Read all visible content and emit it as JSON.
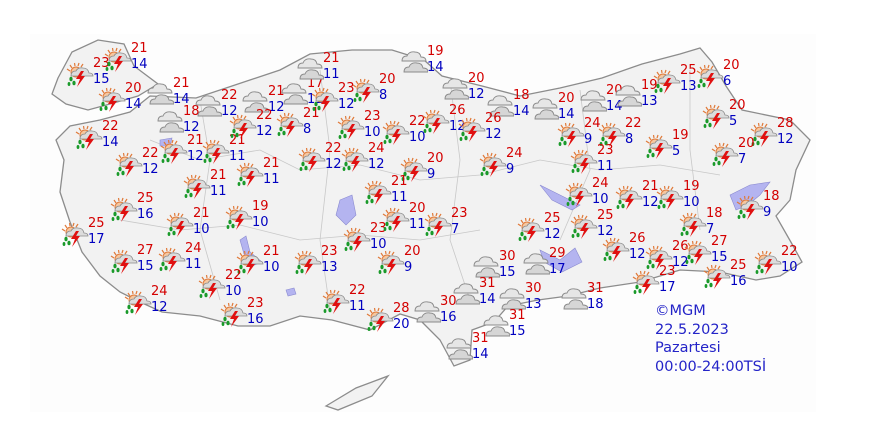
{
  "legend": {
    "copyright": "©MGM",
    "date": "22.5.2023",
    "day": "Pazartesi",
    "period": "00:00-24:00TSİ"
  },
  "colors": {
    "high": "#d40000",
    "low": "#0000c0",
    "land": "#f2f2f2",
    "water": "#b4b4f0",
    "border": "#999999",
    "legend": "#2424c8"
  },
  "icons": {
    "storm": "sun-cloud-thunderstorm-rain-icon",
    "cloudy": "cloudy-icon"
  },
  "stations": [
    {
      "icon": "storm",
      "high": 23,
      "low": 15
    },
    {
      "icon": "storm",
      "high": 21,
      "low": 14
    },
    {
      "icon": "storm",
      "high": 20,
      "low": 14
    },
    {
      "icon": "cloudy",
      "high": 21,
      "low": 14
    },
    {
      "icon": "cloudy",
      "high": 18,
      "low": 12
    },
    {
      "icon": "storm",
      "high": 22,
      "low": 14
    },
    {
      "icon": "storm",
      "high": 22,
      "low": 12
    },
    {
      "icon": "storm",
      "high": 21,
      "low": 12
    },
    {
      "icon": "storm",
      "high": 21,
      "low": 11
    },
    {
      "icon": "storm",
      "high": 21,
      "low": 11
    },
    {
      "icon": "storm",
      "high": 21,
      "low": 11
    },
    {
      "icon": "cloudy",
      "high": 22,
      "low": 12
    },
    {
      "icon": "cloudy",
      "high": 21,
      "low": 12
    },
    {
      "icon": "storm",
      "high": 22,
      "low": 12
    },
    {
      "icon": "storm",
      "high": 21,
      "low": 8
    },
    {
      "icon": "cloudy",
      "high": 17,
      "low": 11
    },
    {
      "icon": "cloudy",
      "high": 21,
      "low": 11
    },
    {
      "icon": "storm",
      "high": 23,
      "low": 12
    },
    {
      "icon": "storm",
      "high": 20,
      "low": 8
    },
    {
      "icon": "storm",
      "high": 23,
      "low": 10
    },
    {
      "icon": "storm",
      "high": 22,
      "low": 12
    },
    {
      "icon": "storm",
      "high": 24,
      "low": 12
    },
    {
      "icon": "storm",
      "high": 22,
      "low": 10
    },
    {
      "icon": "storm",
      "high": 20,
      "low": 9
    },
    {
      "icon": "storm",
      "high": 21,
      "low": 11
    },
    {
      "icon": "cloudy",
      "high": 19,
      "low": 14
    },
    {
      "icon": "cloudy",
      "high": 20,
      "low": 12
    },
    {
      "icon": "cloudy",
      "high": 18,
      "low": 14
    },
    {
      "icon": "cloudy",
      "high": 20,
      "low": 14
    },
    {
      "icon": "storm",
      "high": 26,
      "low": 12
    },
    {
      "icon": "storm",
      "high": 26,
      "low": 12
    },
    {
      "icon": "storm",
      "high": 24,
      "low": 9
    },
    {
      "icon": "storm",
      "high": 24,
      "low": 9
    },
    {
      "icon": "storm",
      "high": 22,
      "low": 8
    },
    {
      "icon": "storm",
      "high": 23,
      "low": 11
    },
    {
      "icon": "cloudy",
      "high": 20,
      "low": 14
    },
    {
      "icon": "cloudy",
      "high": 19,
      "low": 13
    },
    {
      "icon": "storm",
      "high": 25,
      "low": 13
    },
    {
      "icon": "storm",
      "high": 20,
      "low": 6
    },
    {
      "icon": "storm",
      "high": 20,
      "low": 5
    },
    {
      "icon": "storm",
      "high": 28,
      "low": 12
    },
    {
      "icon": "storm",
      "high": 19,
      "low": 5
    },
    {
      "icon": "storm",
      "high": 20,
      "low": 7
    },
    {
      "icon": "storm",
      "high": 24,
      "low": 10
    },
    {
      "icon": "storm",
      "high": 21,
      "low": 12
    },
    {
      "icon": "storm",
      "high": 19,
      "low": 10
    },
    {
      "icon": "storm",
      "high": 18,
      "low": 9
    },
    {
      "icon": "storm",
      "high": 18,
      "low": 7
    },
    {
      "icon": "storm",
      "high": 25,
      "low": 12
    },
    {
      "icon": "storm",
      "high": 25,
      "low": 12
    },
    {
      "icon": "storm",
      "high": 26,
      "low": 12
    },
    {
      "icon": "storm",
      "high": 26,
      "low": 12
    },
    {
      "icon": "storm",
      "high": 27,
      "low": 15
    },
    {
      "icon": "storm",
      "high": 22,
      "low": 10
    },
    {
      "icon": "storm",
      "high": 25,
      "low": 16
    },
    {
      "icon": "storm",
      "high": 23,
      "low": 17
    },
    {
      "icon": "cloudy",
      "high": 31,
      "low": 18
    },
    {
      "icon": "cloudy",
      "high": 29,
      "low": 17
    },
    {
      "icon": "cloudy",
      "high": 30,
      "low": 15
    },
    {
      "icon": "cloudy",
      "high": 31,
      "low": 14
    },
    {
      "icon": "cloudy",
      "high": 30,
      "low": 13
    },
    {
      "icon": "cloudy",
      "high": 30,
      "low": 16
    },
    {
      "icon": "cloudy",
      "high": 31,
      "low": 15
    },
    {
      "icon": "cloudy",
      "high": 31,
      "low": 14
    },
    {
      "icon": "storm",
      "high": 28,
      "low": 20
    },
    {
      "icon": "storm",
      "high": 22,
      "low": 11
    },
    {
      "icon": "storm",
      "high": 23,
      "low": 13
    },
    {
      "icon": "storm",
      "high": 20,
      "low": 9
    },
    {
      "icon": "storm",
      "high": 23,
      "low": 10
    },
    {
      "icon": "storm",
      "high": 20,
      "low": 11
    },
    {
      "icon": "storm",
      "high": 23,
      "low": 7
    },
    {
      "icon": "storm",
      "high": 25,
      "low": 16
    },
    {
      "icon": "storm",
      "high": 25,
      "low": 17
    },
    {
      "icon": "storm",
      "high": 21,
      "low": 10
    },
    {
      "icon": "storm",
      "high": 19,
      "low": 10
    },
    {
      "icon": "storm",
      "high": 27,
      "low": 15
    },
    {
      "icon": "storm",
      "high": 24,
      "low": 11
    },
    {
      "icon": "storm",
      "high": 21,
      "low": 10
    },
    {
      "icon": "storm",
      "high": 22,
      "low": 10
    },
    {
      "icon": "storm",
      "high": 24,
      "low": 12
    },
    {
      "icon": "storm",
      "high": 23,
      "low": 16
    }
  ]
}
